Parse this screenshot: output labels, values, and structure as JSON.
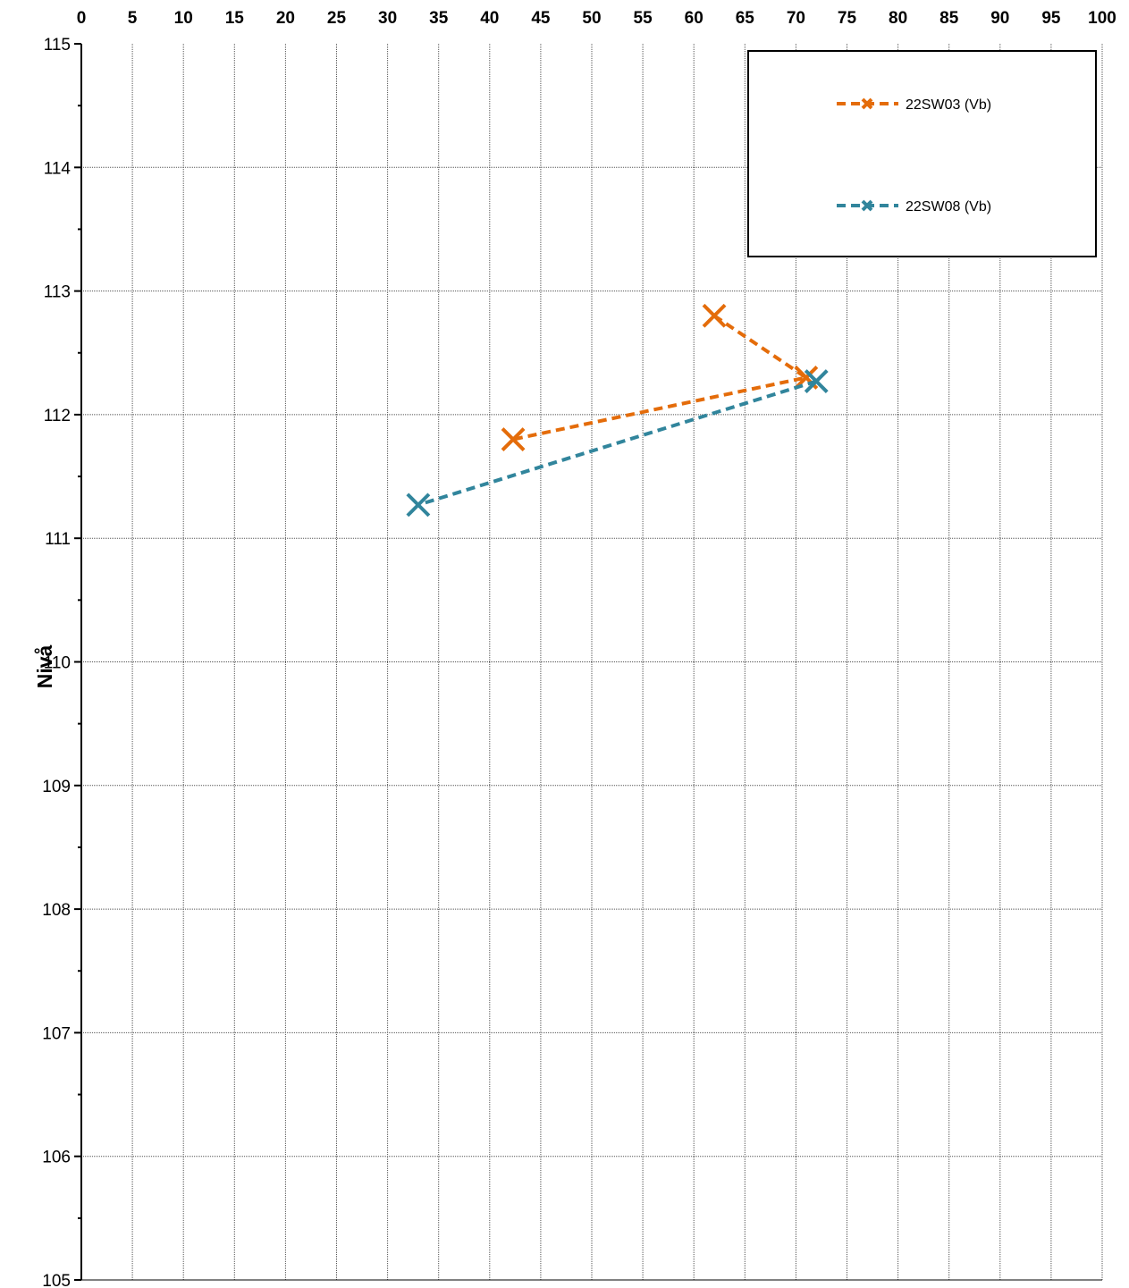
{
  "chart_data": {
    "type": "line",
    "xlabel": "",
    "ylabel": "Nivå",
    "xlim": [
      0,
      100
    ],
    "ylim": [
      105,
      115
    ],
    "x_ticks": [
      "0",
      "5",
      "10",
      "15",
      "20",
      "25",
      "30",
      "35",
      "40",
      "45",
      "50",
      "55",
      "60",
      "65",
      "70",
      "75",
      "80",
      "85",
      "90",
      "95",
      "100"
    ],
    "y_ticks": [
      "105",
      "106",
      "107",
      "108",
      "109",
      "110",
      "111",
      "112",
      "113",
      "114",
      "115"
    ],
    "x_axis_position": "top",
    "y_axis_direction": "increasing-upward",
    "grid": true,
    "legend_position": "top-right",
    "series": [
      {
        "name": "22SW03 (Vb)",
        "color": "#E46C0A",
        "line_style": "dashed",
        "marker": "x",
        "points": [
          {
            "x": 62,
            "y": 112.8
          },
          {
            "x": 71,
            "y": 112.3
          },
          {
            "x": 42.3,
            "y": 111.8
          }
        ]
      },
      {
        "name": "22SW08 (Vb)",
        "color": "#31859C",
        "line_style": "dashed",
        "marker": "x",
        "points": [
          {
            "x": 72,
            "y": 112.27
          },
          {
            "x": 33,
            "y": 111.27
          }
        ]
      }
    ]
  }
}
